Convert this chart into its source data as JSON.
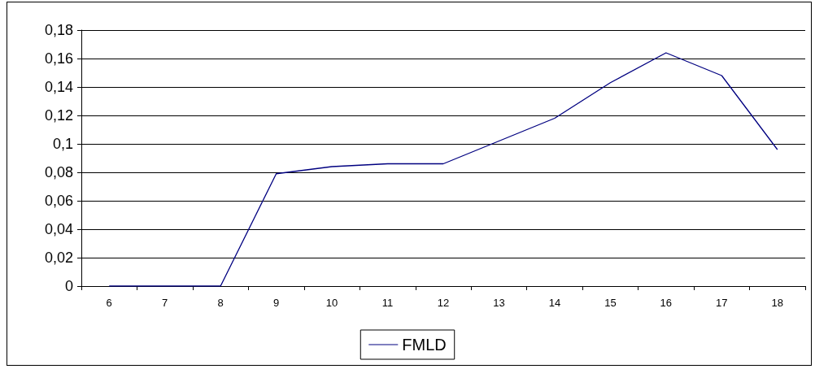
{
  "chart_data": {
    "type": "line",
    "categories": [
      "6",
      "7",
      "8",
      "9",
      "10",
      "11",
      "12",
      "13",
      "14",
      "15",
      "16",
      "17",
      "18"
    ],
    "series": [
      {
        "name": "FMLD",
        "color": "#000080",
        "values": [
          0,
          0,
          0,
          0.079,
          0.084,
          0.086,
          0.086,
          0.102,
          0.118,
          0.143,
          0.164,
          0.148,
          0.096
        ]
      }
    ],
    "ylim": [
      0,
      0.18
    ],
    "yticks": [
      0,
      {
        "value": 0.02,
        "label": "0,02"
      },
      {
        "value": 0.04,
        "label": "0,04"
      },
      {
        "value": 0.06,
        "label": "0,06"
      },
      {
        "value": 0.08,
        "label": "0,08"
      },
      {
        "value": 0.1,
        "label": "0,1"
      },
      {
        "value": 0.12,
        "label": "0,12"
      },
      {
        "value": 0.14,
        "label": "0,14"
      },
      {
        "value": 0.16,
        "label": "0,16"
      },
      {
        "value": 0.18,
        "label": "0,18"
      }
    ],
    "grid": "y",
    "legend": "bottom",
    "marker": "none",
    "line_style": "solid"
  }
}
